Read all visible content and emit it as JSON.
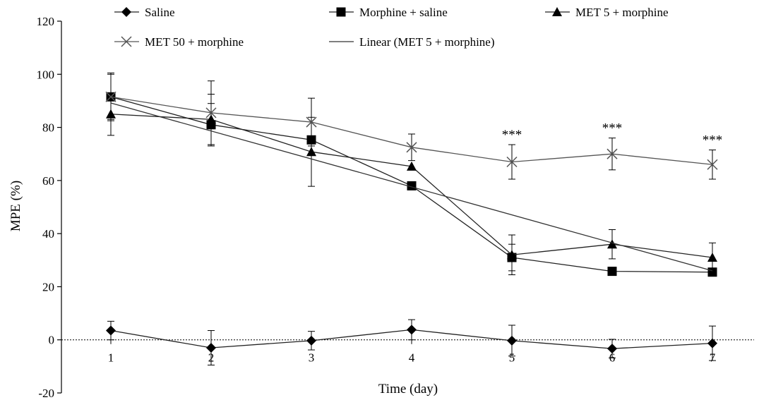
{
  "chart_data": {
    "type": "line",
    "title": "",
    "xlabel": "Time (day)",
    "ylabel": "MPE (%)",
    "x": [
      1,
      2,
      3,
      4,
      5,
      6,
      7
    ],
    "ylim": [
      -20,
      120
    ],
    "yticks": [
      -20,
      0,
      20,
      40,
      60,
      80,
      100,
      120
    ],
    "grid": false,
    "legend_position": "top",
    "zero_line": "dotted",
    "significance_marks": [
      {
        "x": 5,
        "label": "***"
      },
      {
        "x": 6,
        "label": "***"
      },
      {
        "x": 7,
        "label": "***"
      }
    ],
    "series": [
      {
        "name": "Saline",
        "marker": "diamond",
        "color": "#000000",
        "values": [
          3.5,
          -3,
          -0.3,
          3.8,
          -0.3,
          -3.3,
          -1.3
        ],
        "errors": [
          3.5,
          6.5,
          3.5,
          3.8,
          5.8,
          3.5,
          6.5
        ]
      },
      {
        "name": "Morphine + saline",
        "marker": "square",
        "color": "#000000",
        "values": [
          91.5,
          81,
          75.3,
          58,
          31,
          25.8,
          25.5
        ],
        "errors": [
          8.5,
          8,
          0,
          0,
          5,
          0,
          0
        ]
      },
      {
        "name": "MET 5 + morphine",
        "marker": "triangle",
        "color": "#000000",
        "values": [
          85,
          83,
          70.8,
          65.3,
          32,
          36,
          31
        ],
        "errors": [
          8,
          9.5,
          13,
          0,
          7.5,
          5.5,
          5.5
        ]
      },
      {
        "name": "MET 50 + morphine",
        "marker": "x",
        "color": "#555555",
        "values": [
          91.5,
          85.5,
          82,
          72.5,
          67,
          70,
          66
        ],
        "errors": [
          9,
          12,
          9,
          5,
          6.5,
          6,
          5.5
        ]
      },
      {
        "name": "Linear (MET 5 + morphine)",
        "marker": "none",
        "color": "#333333",
        "trend_of": "MET 5 + morphine"
      }
    ]
  }
}
